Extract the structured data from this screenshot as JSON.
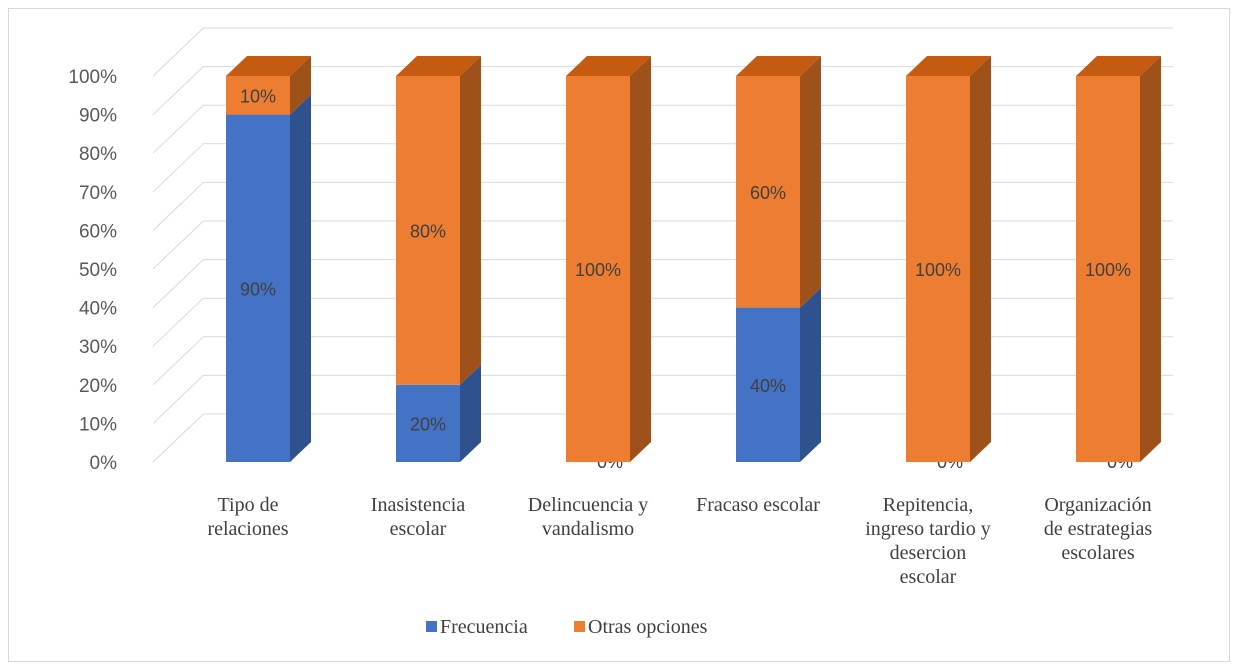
{
  "chart_data": {
    "type": "bar",
    "stacked": true,
    "three_d": true,
    "categories": [
      [
        "Tipo de",
        "relaciones"
      ],
      [
        "Inasistencia",
        "escolar"
      ],
      [
        "Delincuencia y",
        "vandalismo"
      ],
      [
        "Fracaso escolar"
      ],
      [
        "Repitencia,",
        "ingreso tardio y",
        "desercion",
        "escolar"
      ],
      [
        "Organización",
        "de estrategias",
        "escolares"
      ]
    ],
    "series": [
      {
        "name": "Frecuencia",
        "color": "#4472c4",
        "side_color": "#2f528f",
        "values": [
          90,
          20,
          0,
          40,
          0,
          0
        ],
        "labels": [
          "90%",
          "20%",
          "0%",
          "40%",
          "0%",
          "0%"
        ]
      },
      {
        "name": "Otras opciones",
        "color": "#ed7d31",
        "side_color": "#9e5219",
        "top_color": "#c55a11",
        "values": [
          10,
          80,
          100,
          60,
          100,
          100
        ],
        "labels": [
          "10%",
          "80%",
          "100%",
          "60%",
          "100%",
          "100%"
        ]
      }
    ],
    "yticks": [
      "0%",
      "10%",
      "20%",
      "30%",
      "40%",
      "50%",
      "60%",
      "70%",
      "80%",
      "90%",
      "100%"
    ],
    "ylim": [
      0,
      100
    ],
    "grid": true,
    "legend_position": "bottom",
    "gridline_color": "#d9d9d9"
  }
}
